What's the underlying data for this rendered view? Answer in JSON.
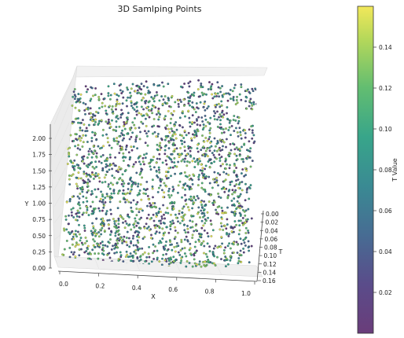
{
  "chart_data": {
    "type": "scatter",
    "projection": "3d",
    "title": "3D Samlping Points",
    "xlabel": "X",
    "ylabel": "Y",
    "zlabel": "T",
    "xlim": [
      0.0,
      1.0
    ],
    "ylim": [
      0.0,
      2.0
    ],
    "tlim": [
      0.0,
      0.16
    ],
    "x_ticks": [
      "0.0",
      "0.2",
      "0.4",
      "0.6",
      "0.8",
      "1.0"
    ],
    "y_ticks": [
      "0.00",
      "0.25",
      "0.50",
      "0.75",
      "1.00",
      "1.25",
      "1.50",
      "1.75",
      "2.00"
    ],
    "t_ticks": [
      "0.00",
      "0.02",
      "0.04",
      "0.06",
      "0.08",
      "0.10",
      "0.12",
      "0.14",
      "0.16"
    ],
    "colorbar": {
      "label": "T Value",
      "range": [
        0.0,
        0.16
      ],
      "ticks": [
        "0.02",
        "0.04",
        "0.06",
        "0.08",
        "0.10",
        "0.12",
        "0.14"
      ],
      "colormap": "viridis"
    },
    "sampling": {
      "x_range": [
        0.0,
        1.0
      ],
      "y_range": [
        0.0,
        2.0
      ],
      "t_range": [
        0.0,
        0.16
      ],
      "distribution": "uniform random; dense cloud filling the box",
      "marker_edge_color": "#000000"
    },
    "grid": true
  }
}
